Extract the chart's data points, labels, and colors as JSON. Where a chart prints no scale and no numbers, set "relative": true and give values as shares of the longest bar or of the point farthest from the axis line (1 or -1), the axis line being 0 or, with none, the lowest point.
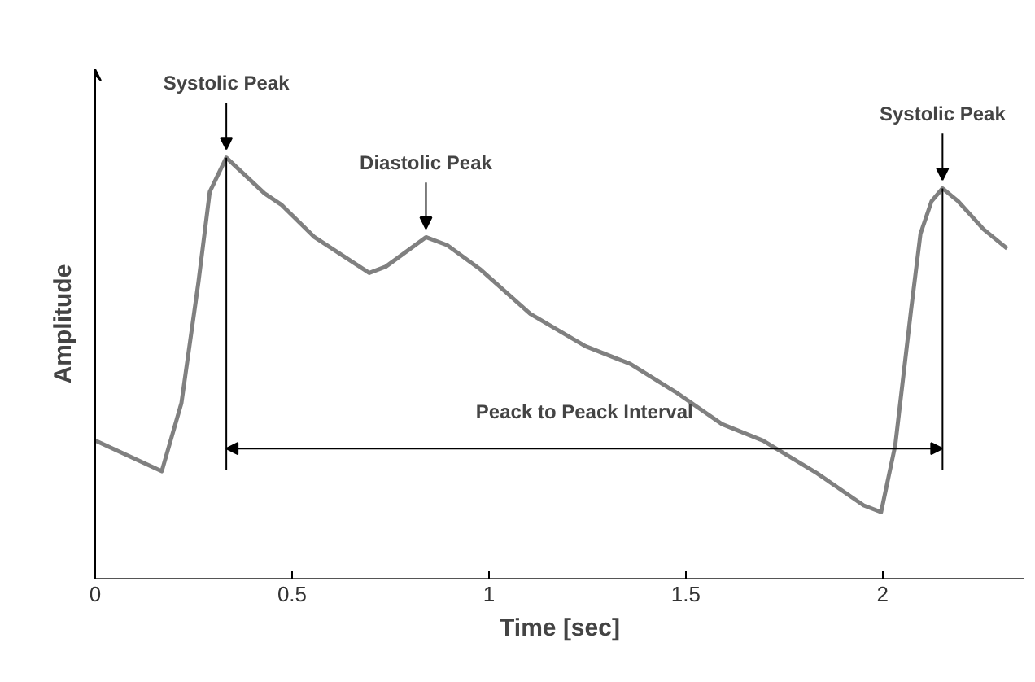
{
  "chart_data": {
    "type": "line",
    "relative": true,
    "xlabel": "Time [sec]",
    "ylabel": "Amplitude",
    "xlim": [
      0,
      2.36
    ],
    "xticks": [
      0,
      0.5,
      1,
      1.5,
      2
    ],
    "grid": false,
    "marker": "none",
    "line_style": "solid",
    "series": [
      {
        "color": "#808080",
        "x": [
          0,
          0.169,
          0.219,
          0.262,
          0.291,
          0.333,
          0.43,
          0.473,
          0.557,
          0.696,
          0.738,
          0.84,
          0.894,
          0.979,
          1.105,
          1.245,
          1.359,
          1.473,
          1.592,
          1.696,
          1.832,
          1.952,
          1.996,
          2.032,
          2.072,
          2.096,
          2.124,
          2.152,
          2.192,
          2.256,
          2.316
        ],
        "values": [
          0.328,
          0.255,
          0.417,
          0.703,
          0.919,
          1.0,
          0.915,
          0.888,
          0.811,
          0.726,
          0.741,
          0.811,
          0.792,
          0.734,
          0.629,
          0.552,
          0.51,
          0.444,
          0.367,
          0.328,
          0.251,
          0.174,
          0.158,
          0.317,
          0.637,
          0.819,
          0.896,
          0.927,
          0.896,
          0.83,
          0.784
        ]
      }
    ],
    "annotations": [
      {
        "text": "Systolic Peak",
        "x": 0.333,
        "y": 1.0
      },
      {
        "text": "Diastolic Peak",
        "x": 0.84,
        "y": 0.811
      },
      {
        "text": "Systolic Peak",
        "x": 2.152,
        "y": 0.927
      },
      "Peack to Peack Interval"
    ],
    "ref_lines": [
      {
        "axis": "x",
        "value": 0.333,
        "color": "#000000"
      },
      {
        "axis": "x",
        "value": 2.152,
        "color": "#000000"
      }
    ]
  }
}
